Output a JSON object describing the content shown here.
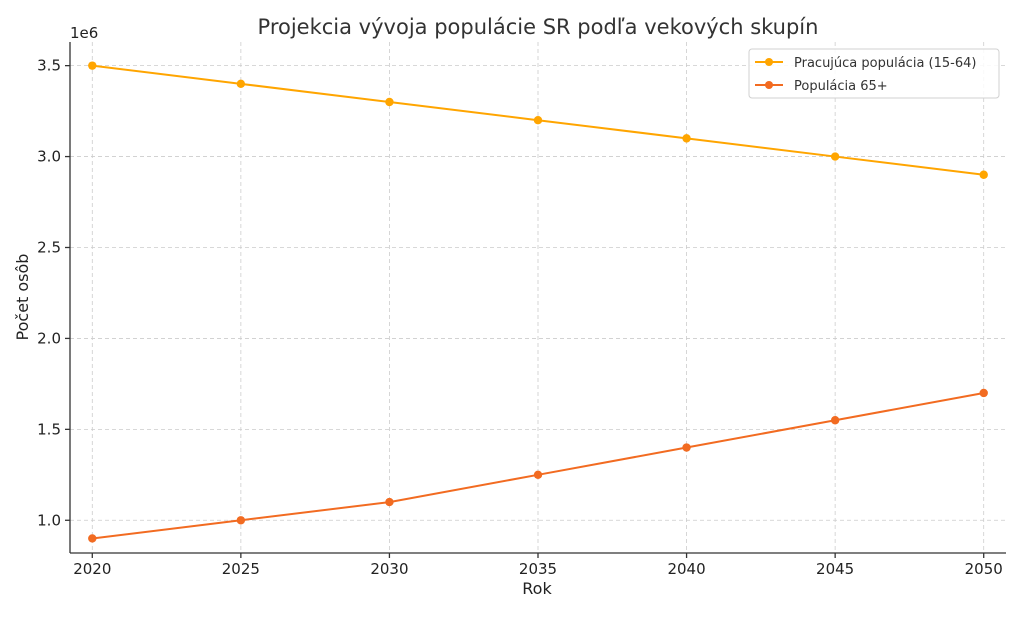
{
  "chart_data": {
    "type": "line",
    "title": "Projekcia vývoja populácie SR podľa vekových skupín",
    "xlabel": "Rok",
    "ylabel": "Počet osôb",
    "y_offset_label": "1e6",
    "x": [
      2020,
      2025,
      2030,
      2035,
      2040,
      2045,
      2050
    ],
    "xlim": [
      2019.25,
      2050.75
    ],
    "ylim": [
      820000,
      3630000
    ],
    "y_ticks": [
      1000000,
      1500000,
      2000000,
      2500000,
      3000000,
      3500000
    ],
    "y_tick_labels": [
      "1.0",
      "1.5",
      "2.0",
      "2.5",
      "3.0",
      "3.5"
    ],
    "x_tick_labels": [
      "2020",
      "2025",
      "2030",
      "2035",
      "2040",
      "2045",
      "2050"
    ],
    "grid": true,
    "legend_position": "top-right",
    "series": [
      {
        "name": "Pracujúca populácia (15-64)",
        "color": "#FFA500",
        "values": [
          3500000,
          3400000,
          3300000,
          3200000,
          3100000,
          3000000,
          2900000
        ]
      },
      {
        "name": "Populácia 65+",
        "color": "#F26B21",
        "values": [
          900000,
          1000000,
          1100000,
          1250000,
          1400000,
          1550000,
          1700000
        ]
      }
    ]
  }
}
